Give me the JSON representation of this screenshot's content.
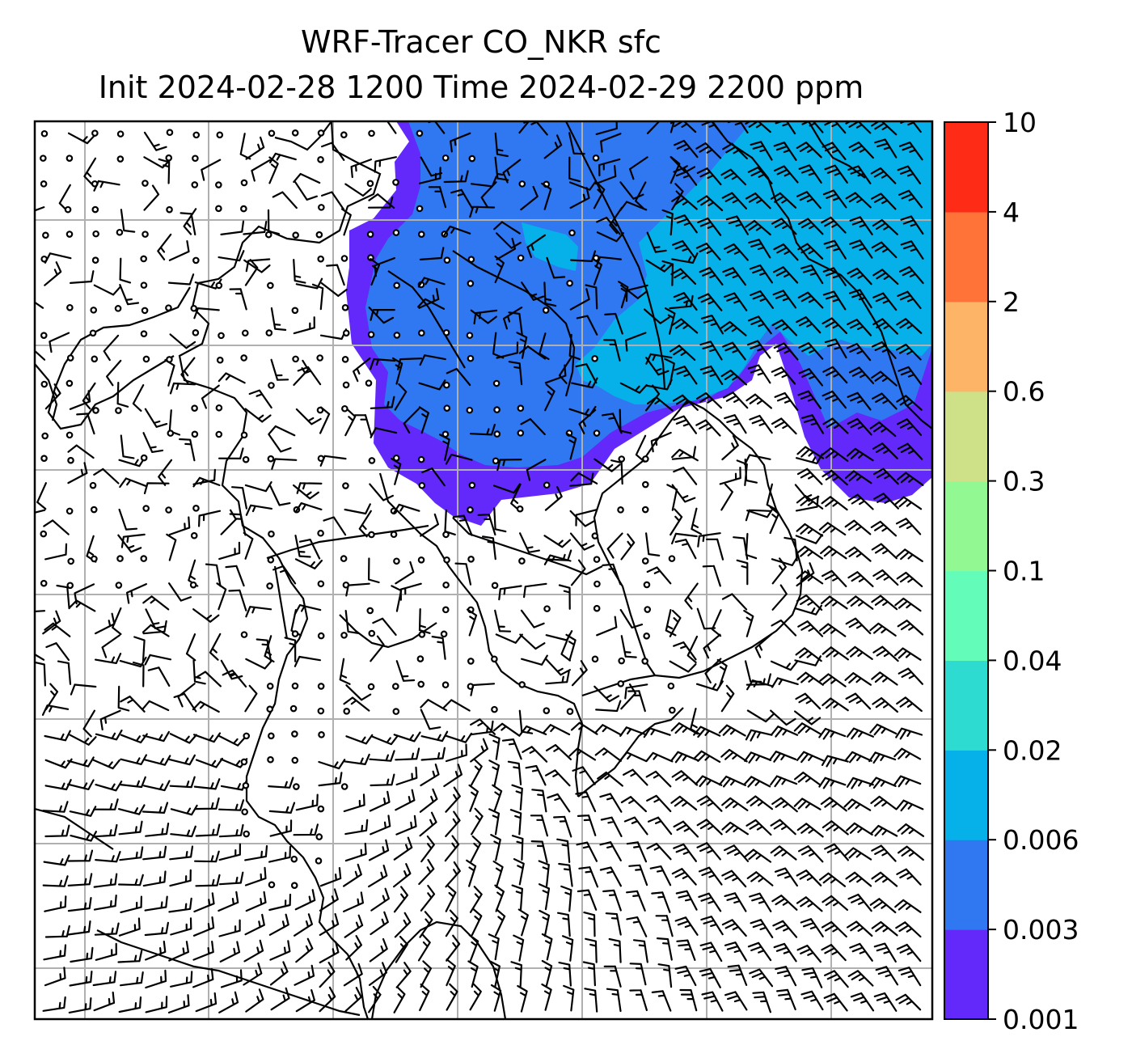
{
  "figure": {
    "title_line1": "WRF-Tracer CO_NKR sfc",
    "title_line2": "Init 2024-02-28 1200 Time 2024-02-29 2200 ppm"
  },
  "colorbar": {
    "ticks": [
      "0.001",
      "0.003",
      "0.006",
      "0.02",
      "0.04",
      "0.1",
      "0.3",
      "0.6",
      "2",
      "4",
      "10"
    ],
    "colors": [
      "#6329fa",
      "#3078f1",
      "#06b0e9",
      "#2ddbd0",
      "#63fcb8",
      "#92f892",
      "#cfe188",
      "#feb466",
      "#ff7339",
      "#fe2b16"
    ]
  },
  "map": {
    "grid": true,
    "field_colors": {
      "0.001-0.003": "#6329fa",
      "0.003-0.006": "#3078f1",
      "0.006-0.02": "#06b0e9"
    },
    "wind_field": "wind barbs"
  }
}
